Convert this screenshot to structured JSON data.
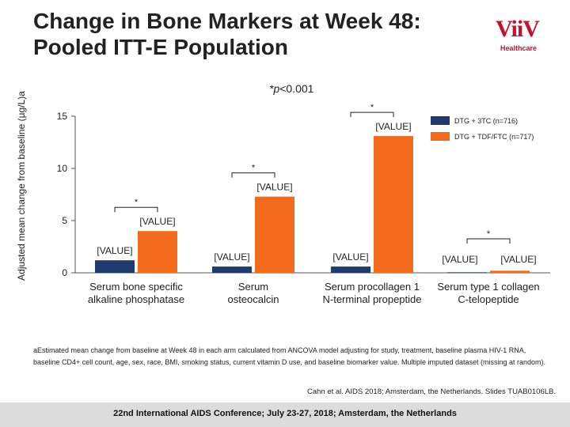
{
  "slide": {
    "title_line1": "Change in Bone Markers at Week 48:",
    "title_line2": "Pooled ITT-E Population",
    "logo_text": "ViiV",
    "logo_sub": "Healthcare",
    "p_note": "*p<0.001",
    "footnote": "aEstimated mean change from baseline at Week 48 in each arm calculated from ANCOVA model adjusting for study, treatment, baseline plasma HIV-1 RNA, baseline CD4+ cell count, age, sex, race, BMI, smoking status, current vitamin D use, and baseline biomarker value. Multiple imputed dataset (missing at random).",
    "citation": "Cahn et al. AIDS 2018; Amsterdam, the Netherlands. Slides TUAB0106LB.",
    "conference": "22nd International AIDS Conference; July 23-27, 2018; Amsterdam, the Netherlands"
  },
  "colors": {
    "series1": "#1f3a6e",
    "series2": "#f26a1b",
    "axis": "#555555"
  },
  "chart_data": {
    "type": "bar",
    "ylabel": "Adjusted mean change from baseline (µg/L)a",
    "ylim": [
      0,
      15
    ],
    "yticks": [
      0,
      5,
      10,
      15
    ],
    "categories": [
      [
        "Serum bone specific",
        "alkaline phosphatase"
      ],
      [
        "Serum",
        "osteocalcin"
      ],
      [
        "Serum procollagen 1",
        "N-terminal propeptide"
      ],
      [
        "Serum type 1 collagen",
        "C-telopeptide"
      ]
    ],
    "series": [
      {
        "name": "DTG + 3TC (n=716)",
        "values": [
          1.2,
          0.6,
          0.6,
          0.05
        ]
      },
      {
        "name": "DTG + TDF/FTC (n=717)",
        "values": [
          4.0,
          7.3,
          13.1,
          0.2
        ]
      }
    ],
    "data_labels": [
      [
        "[VALUE]",
        "[VALUE]"
      ],
      [
        "[VALUE]",
        "[VALUE]"
      ],
      [
        "[VALUE]",
        "[VALUE]"
      ],
      [
        "[VALUE]",
        "[VALUE]"
      ]
    ],
    "significance": [
      "*",
      "*",
      "*",
      "*"
    ],
    "legend_position": "top-right"
  }
}
